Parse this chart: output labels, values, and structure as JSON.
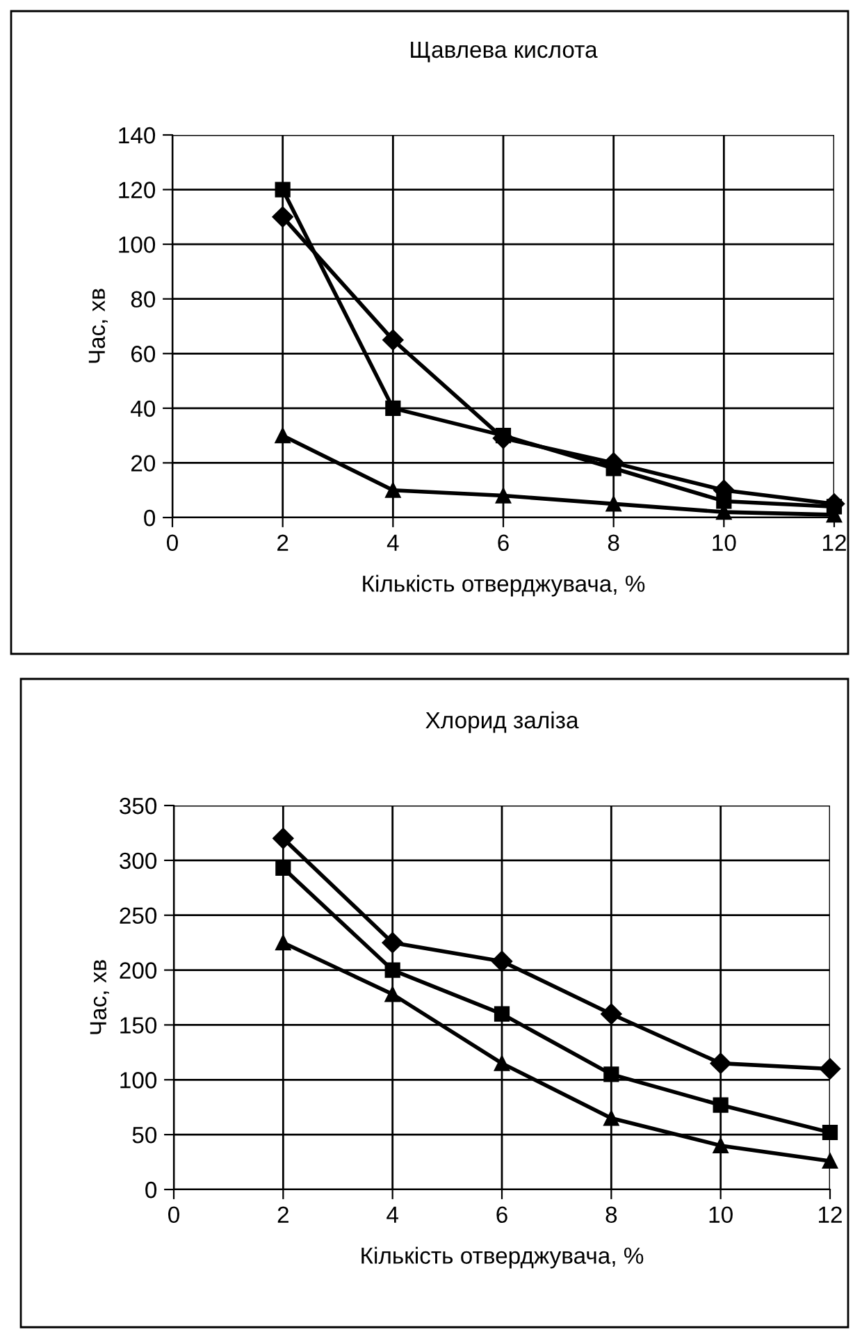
{
  "chart_data": [
    {
      "type": "line",
      "title": "Щавлева кислота",
      "xlabel": "Кількість отверджувача, %",
      "ylabel": "Час, хв",
      "x": [
        2,
        4,
        6,
        8,
        10,
        12
      ],
      "xlim": [
        0,
        12
      ],
      "xticks": [
        0,
        2,
        4,
        6,
        8,
        10,
        12
      ],
      "ylim": [
        0,
        140
      ],
      "yticks": [
        0,
        20,
        40,
        60,
        80,
        100,
        120,
        140
      ],
      "grid": true,
      "legend": false,
      "line_style": "solid",
      "series": [
        {
          "color": "#000000",
          "marker": "diamond",
          "values": [
            110,
            65,
            29,
            20,
            10,
            5
          ]
        },
        {
          "color": "#000000",
          "marker": "square",
          "values": [
            120,
            40,
            30,
            18,
            6,
            4
          ]
        },
        {
          "color": "#000000",
          "marker": "triangle",
          "values": [
            30,
            10,
            8,
            5,
            2,
            1
          ]
        }
      ]
    },
    {
      "type": "line",
      "title": "Хлорид заліза",
      "xlabel": "Кількість отверджувача, %",
      "ylabel": "Час, хв",
      "x": [
        2,
        4,
        6,
        8,
        10,
        12
      ],
      "xlim": [
        0,
        12
      ],
      "xticks": [
        0,
        2,
        4,
        6,
        8,
        10,
        12
      ],
      "ylim": [
        0,
        350
      ],
      "yticks": [
        0,
        50,
        100,
        150,
        200,
        250,
        300,
        350
      ],
      "grid": true,
      "legend": false,
      "line_style": "solid",
      "series": [
        {
          "color": "#000000",
          "marker": "diamond",
          "values": [
            320,
            225,
            208,
            160,
            115,
            110
          ]
        },
        {
          "color": "#000000",
          "marker": "square",
          "values": [
            293,
            200,
            160,
            105,
            77,
            52
          ]
        },
        {
          "color": "#000000",
          "marker": "triangle",
          "values": [
            225,
            178,
            115,
            65,
            40,
            26
          ]
        }
      ]
    }
  ]
}
